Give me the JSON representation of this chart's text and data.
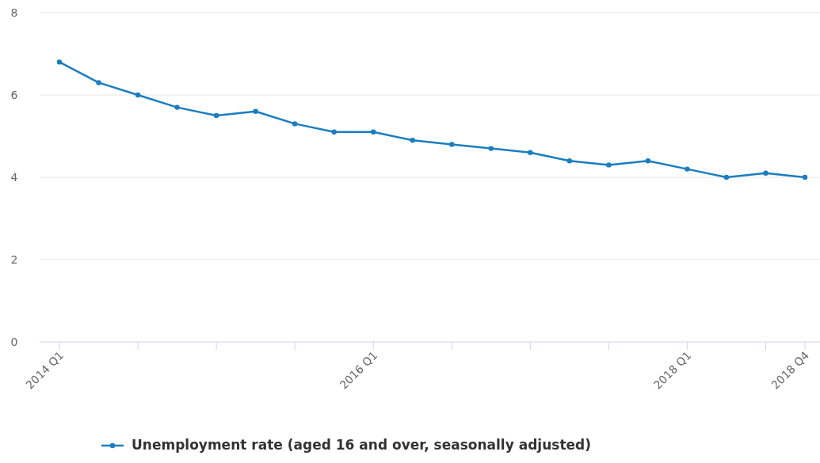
{
  "chart_data": {
    "type": "line",
    "categories": [
      "2014 Q1",
      null,
      null,
      null,
      null,
      null,
      null,
      null,
      "2016 Q1",
      null,
      null,
      null,
      null,
      null,
      null,
      null,
      "2018 Q1",
      null,
      null,
      "2018 Q4"
    ],
    "series": [
      {
        "name": "Unemployment rate (aged 16 and over, seasonally adjusted)",
        "color": "#1a7dc0",
        "values": [
          6.8,
          6.3,
          6.0,
          5.7,
          5.5,
          5.6,
          5.3,
          5.1,
          5.1,
          4.9,
          4.8,
          4.7,
          4.6,
          4.4,
          4.3,
          4.4,
          4.2,
          4.0,
          4.1,
          4.0
        ]
      }
    ],
    "ylim": [
      0,
      8
    ],
    "yticks": [
      0,
      2,
      4,
      6,
      8
    ],
    "grid": "y",
    "legend": "bottom",
    "marker": "circle",
    "line_style": "solid"
  }
}
